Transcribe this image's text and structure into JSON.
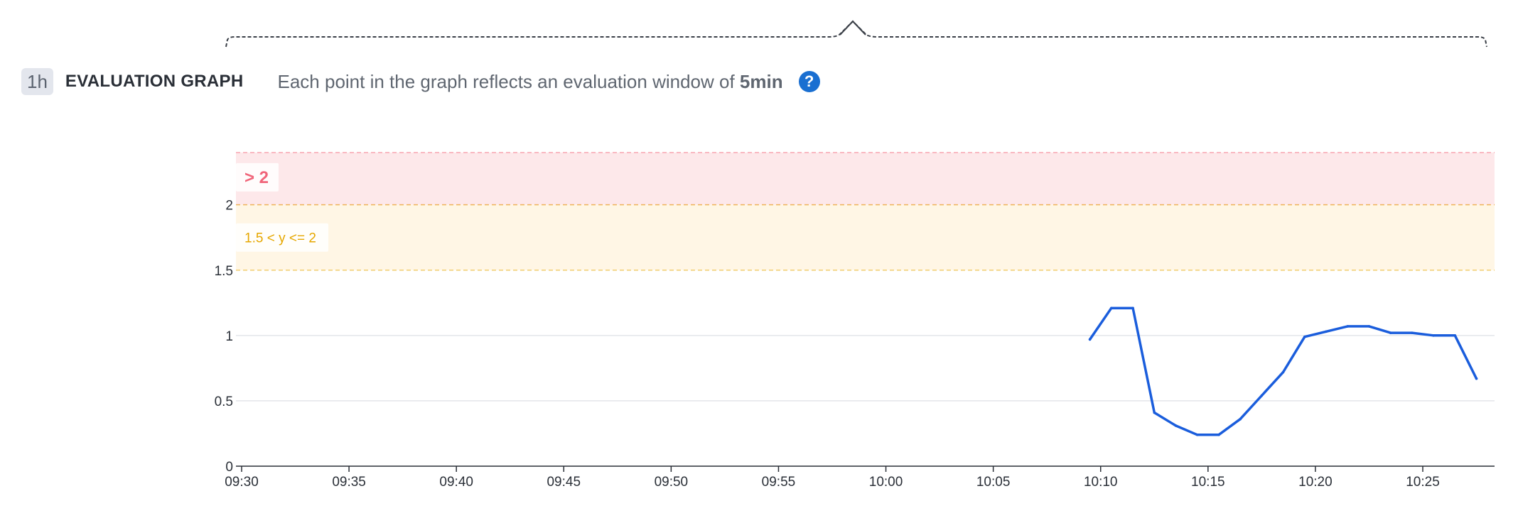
{
  "header": {
    "range_badge": "1h",
    "title": "EVALUATION GRAPH",
    "description": "Each point in the graph reflects an evaluation window of",
    "window": "5min",
    "help_icon": "question-circle-icon"
  },
  "chart_data": {
    "type": "line",
    "title": "",
    "xlabel": "",
    "ylabel": "",
    "ylim": [
      0,
      2.4
    ],
    "yticks": [
      0,
      0.5,
      1,
      1.5,
      2
    ],
    "ytick_labels": [
      "0",
      "0.5",
      "1",
      "1.5",
      "2"
    ],
    "xticks": [
      "09:30",
      "09:35",
      "09:40",
      "09:45",
      "09:50",
      "09:55",
      "10:00",
      "10:05",
      "10:10",
      "10:15",
      "10:20",
      "10:25"
    ],
    "xrange_minutes": [
      0,
      60
    ],
    "grid": true,
    "thresholds": [
      {
        "label": "> 2",
        "from": 2,
        "to": 2.4,
        "color": "#f0657a",
        "fill": "#fde8ea"
      },
      {
        "label": "1.5 < y <= 2",
        "from": 1.5,
        "to": 2,
        "color": "#e6a700",
        "fill": "#fff6e5"
      }
    ],
    "series": [
      {
        "color": "#1a5ddc",
        "x": [
          39.5,
          40.5,
          41.5,
          42.5,
          43.5,
          44.5,
          45.5,
          46.5,
          47.5,
          48.5,
          49.5,
          50.5,
          51.5,
          52.5,
          53.5,
          54.5,
          55.5,
          56.5,
          57.5
        ],
        "values": [
          0.97,
          1.21,
          1.21,
          0.41,
          0.31,
          0.24,
          0.24,
          0.36,
          0.54,
          0.72,
          0.99,
          1.03,
          1.07,
          1.07,
          1.02,
          1.02,
          1.0,
          1.0,
          0.67
        ]
      }
    ]
  }
}
